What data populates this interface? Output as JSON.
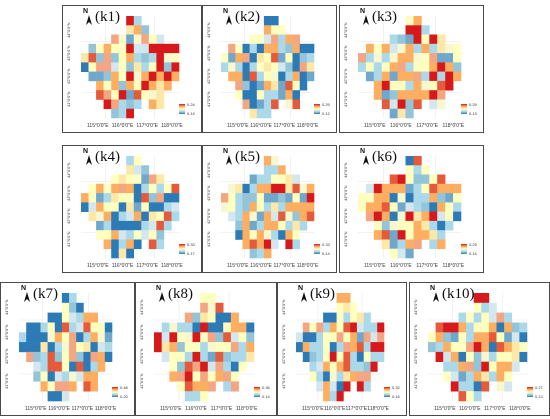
{
  "panels": [
    {
      "label": "(k1)",
      "legend_max": "0.24",
      "legend_min": "0.14"
    },
    {
      "label": "(k2)",
      "legend_max": "0.29",
      "legend_min": "0.12"
    },
    {
      "label": "(k3)",
      "legend_max": "0.29",
      "legend_min": "0.13"
    },
    {
      "label": "(k4)",
      "legend_max": "0.33",
      "legend_min": "0.17"
    },
    {
      "label": "(k5)",
      "legend_max": "0.33",
      "legend_min": "0.14"
    },
    {
      "label": "(k6)",
      "legend_max": "0.29",
      "legend_min": "0.14"
    },
    {
      "label": "(k7)",
      "legend_max": "0.48",
      "legend_min": "0.20"
    },
    {
      "label": "(k8)",
      "legend_max": "0.36",
      "legend_min": "0.14"
    },
    {
      "label": "(k9)",
      "legend_max": "0.32",
      "legend_min": "0.16"
    },
    {
      "label": "(k10)",
      "legend_max": "0.27",
      "legend_min": "0.13"
    }
  ],
  "axes": {
    "x_ticks": [
      "115°0'0\"E",
      "116°0'0\"E",
      "117°0'0\"E",
      "118°0'0\"E"
    ],
    "y_ticks": [
      "44°0'0\"N",
      "43°0'0\"N",
      "42°0'0\"N",
      "41°0'0\"N"
    ]
  },
  "north_arrow": {
    "letter": "N",
    "icon": "north-arrow-icon"
  },
  "colors": {
    "high": "#d7191c",
    "mid_high": "#fdae61",
    "mid": "#ffffbf",
    "mid_low": "#abd9e9",
    "low": "#2c7bb6"
  }
}
